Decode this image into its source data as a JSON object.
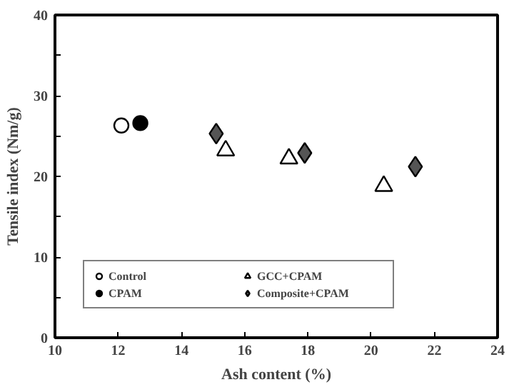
{
  "chart_data": {
    "type": "scatter",
    "xlabel": "Ash content (%)",
    "ylabel": "Tensile index (Nm/g)",
    "xlim": [
      10,
      24
    ],
    "xticks": [
      10,
      12,
      14,
      16,
      18,
      20,
      22,
      24
    ],
    "ylim": [
      0,
      40
    ],
    "yticks": [
      0,
      {
        "value": 5,
        "label": null
      },
      10,
      {
        "value": 15,
        "label": null
      },
      20,
      {
        "value": 25,
        "label": null
      },
      30,
      {
        "value": 35,
        "label": null
      },
      40
    ],
    "grid": false,
    "legend": "bottom left",
    "series": [
      {
        "name": "Control",
        "color": "#ffffff",
        "marker": "circle",
        "x": [
          12.1
        ],
        "values": [
          26.3
        ]
      },
      {
        "name": "CPAM",
        "color": "#000000",
        "marker": "circle",
        "x": [
          12.7
        ],
        "values": [
          26.6
        ]
      },
      {
        "name": "GCC+CPAM",
        "color": "#ffffff",
        "marker": "triangle",
        "x": [
          15.4,
          17.4,
          20.4
        ],
        "values": [
          23.2,
          22.2,
          18.8
        ]
      },
      {
        "name": "Composite+CPAM",
        "color": "#555555",
        "marker": "diamond",
        "x": [
          15.1,
          17.9,
          21.4
        ],
        "values": [
          25.3,
          22.9,
          21.2
        ]
      }
    ]
  }
}
